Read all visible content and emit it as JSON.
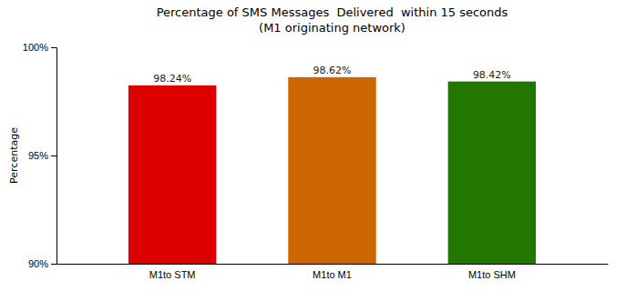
{
  "chart_data": {
    "type": "bar",
    "title": "Percentage of SMS Messages  Delivered  within 15 seconds",
    "subtitle": "(M1 originating network)",
    "categories": [
      "M1to STM",
      "M1to M1",
      "M1to SHM"
    ],
    "values": [
      98.24,
      98.62,
      98.42
    ],
    "value_labels": [
      "98.24%",
      "98.62%",
      "98.42%"
    ],
    "data_labels": true,
    "colors": [
      "#dd0000",
      "#cc6600",
      "#227700"
    ],
    "ylabel": "Percentage",
    "ylim": [
      90,
      100
    ],
    "yticks": [
      {
        "value": 90,
        "label": "90%"
      },
      {
        "value": 95,
        "label": "95%"
      },
      {
        "value": 100,
        "label": "100%"
      }
    ],
    "grid": false
  }
}
